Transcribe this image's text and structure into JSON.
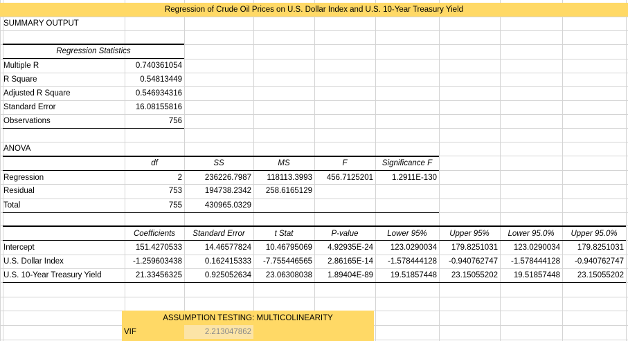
{
  "title": "Regression of  Crude Oil Prices on U.S. Dollar Index and U.S. 10-Year Treasury Yield",
  "summary_label": "SUMMARY OUTPUT",
  "regression_statistics": {
    "header": "Regression Statistics",
    "rows": [
      {
        "label": "Multiple R",
        "value": "0.740361054"
      },
      {
        "label": "R Square",
        "value": "0.54813449"
      },
      {
        "label": "Adjusted R Square",
        "value": "0.546934316"
      },
      {
        "label": "Standard Error",
        "value": "16.08155816"
      },
      {
        "label": "Observations",
        "value": "756"
      }
    ]
  },
  "anova": {
    "label": "ANOVA",
    "headers": [
      "df",
      "SS",
      "MS",
      "F",
      "Significance F"
    ],
    "rows": [
      {
        "label": "Regression",
        "df": "2",
        "ss": "236226.7987",
        "ms": "118113.3993",
        "f": "456.7125201",
        "sig": "1.2911E-130"
      },
      {
        "label": "Residual",
        "df": "753",
        "ss": "194738.2342",
        "ms": "258.6165129",
        "f": "",
        "sig": ""
      },
      {
        "label": "Total",
        "df": "755",
        "ss": "430965.0329",
        "ms": "",
        "f": "",
        "sig": ""
      }
    ]
  },
  "coefficients": {
    "headers": [
      "Coefficients",
      "Standard Error",
      "t Stat",
      "P-value",
      "Lower 95%",
      "Upper 95%",
      "Lower 95.0%",
      "Upper 95.0%"
    ],
    "rows": [
      {
        "label": "Intercept",
        "values": [
          "151.4270533",
          "14.46577824",
          "10.46795069",
          "4.92935E-24",
          "123.0290034",
          "179.8251031",
          "123.0290034",
          "179.8251031"
        ]
      },
      {
        "label": "U.S. Dollar Index",
        "values": [
          "-1.259603438",
          "0.162415333",
          "-7.755446565",
          "2.86165E-14",
          "-1.578444128",
          "-0.940762747",
          "-1.578444128",
          "-0.940762747"
        ]
      },
      {
        "label": "U.S. 10-Year Treasury Yield",
        "values": [
          "21.33456325",
          "0.925052634",
          "23.06308038",
          "1.89404E-89",
          "19.51857448",
          "23.15055202",
          "19.51857448",
          "23.15055202"
        ]
      }
    ]
  },
  "assumption": {
    "header": "ASSUMPTION TESTING: MULTICOLINEARITY",
    "vif_label": "VIF",
    "vif_value": "2.213047862"
  },
  "colors": {
    "title_fill": "#ffd966",
    "vif_fill": "#fce4a6",
    "gridline": "#d4d4d4"
  }
}
